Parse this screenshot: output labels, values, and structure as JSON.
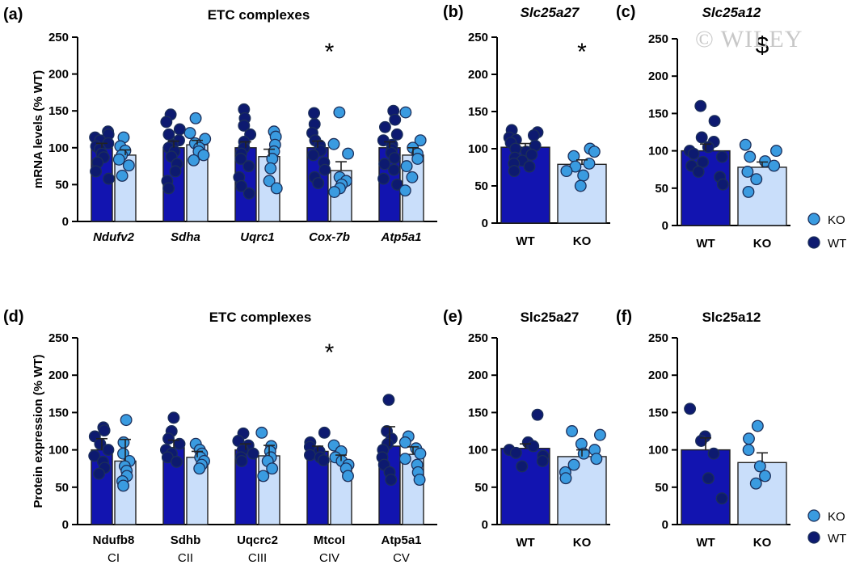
{
  "watermark": "© WILEY",
  "legend": {
    "items": [
      {
        "label": "KO",
        "color": "#3a9be0"
      },
      {
        "label": "WT",
        "color": "#0d1a70"
      }
    ]
  },
  "chart_data": [
    {
      "panel": "(a)",
      "type": "bar",
      "title": "ETC complexes",
      "ylabel": "mRNA levels (% WT)",
      "ylim": [
        0,
        250
      ],
      "yticks": [
        0,
        50,
        100,
        150,
        200,
        250
      ],
      "categories": [
        "Ndufv2",
        "Sdha",
        "Uqrc1",
        "Cox-7b",
        "Atp5a1"
      ],
      "category_style": "italic",
      "series": [
        {
          "name": "WT",
          "values": [
            100,
            100,
            100,
            100,
            100
          ],
          "sem": [
            6,
            9,
            8,
            9,
            8
          ],
          "points": [
            [
              122,
              118,
              114,
              110,
              106,
              102,
              98,
              92,
              87,
              80,
              68,
              58
            ],
            [
              145,
              135,
              125,
              118,
              110,
              104,
              100,
              95,
              88,
              78,
              68,
              55,
              45
            ],
            [
              152,
              140,
              130,
              118,
              108,
              100,
              92,
              85,
              75,
              60,
              48,
              38
            ],
            [
              147,
              132,
              120,
              110,
              103,
              96,
              90,
              80,
              70,
              60,
              52
            ],
            [
              150,
              138,
              128,
              118,
              110,
              104,
              98,
              93,
              86,
              78,
              70,
              58,
              50
            ]
          ]
        },
        {
          "name": "KO",
          "values": [
            90,
            104,
            88,
            69,
            90
          ],
          "sem": [
            7,
            6,
            10,
            12,
            10
          ],
          "points": [
            [
              114,
              102,
              96,
              90,
              84,
              76,
              62
            ],
            [
              140,
              120,
              112,
              106,
              100,
              95,
              90,
              83
            ],
            [
              122,
              115,
              104,
              95,
              85,
              72,
              55,
              45
            ],
            [
              148,
              105,
              92,
              60,
              55,
              50,
              45,
              40
            ],
            [
              148,
              110,
              100,
              92,
              85,
              75,
              60,
              42
            ]
          ]
        }
      ],
      "annotations": [
        {
          "text": "*",
          "category": "Cox-7b"
        }
      ]
    },
    {
      "panel": "(b)",
      "type": "bar",
      "title": "Slc25a27",
      "title_style": "italic",
      "ylim": [
        0,
        250
      ],
      "yticks": [
        0,
        50,
        100,
        150,
        200,
        250
      ],
      "categories": [
        "WT",
        "KO"
      ],
      "values": [
        102,
        79
      ],
      "sem": [
        5,
        6
      ],
      "points": [
        [
          125,
          122,
          118,
          115,
          112,
          108,
          104,
          100,
          96,
          92,
          88,
          84,
          80,
          76,
          70
        ],
        [
          100,
          96,
          90,
          80,
          76,
          70,
          64,
          50
        ]
      ],
      "annotations": [
        {
          "text": "*",
          "category": "KO"
        }
      ]
    },
    {
      "panel": "(c)",
      "type": "bar",
      "title": "Slc25a12",
      "title_style": "italic",
      "ylim": [
        0,
        250
      ],
      "yticks": [
        0,
        50,
        100,
        150,
        200,
        250
      ],
      "categories": [
        "WT",
        "KO"
      ],
      "values": [
        100,
        78
      ],
      "sem": [
        9,
        7
      ],
      "points": [
        [
          160,
          140,
          118,
          112,
          105,
          100,
          96,
          92,
          85,
          80,
          72,
          65,
          55
        ],
        [
          108,
          100,
          92,
          86,
          80,
          72,
          62,
          45
        ]
      ],
      "annotations": [
        {
          "text": "$",
          "category": "KO"
        }
      ]
    },
    {
      "panel": "(d)",
      "type": "bar",
      "title": "ETC complexes",
      "ylabel": "Protein expression (% WT)",
      "ylim": [
        0,
        250
      ],
      "yticks": [
        0,
        50,
        100,
        150,
        200,
        250
      ],
      "categories": [
        "Ndufb8",
        "Sdhb",
        "Uqcrc2",
        "MtcoI",
        "Atp5a1"
      ],
      "subcategories": [
        "CI",
        "CII",
        "CIII",
        "CIV",
        "CV"
      ],
      "series": [
        {
          "name": "WT",
          "values": [
            100,
            103,
            100,
            98,
            105
          ],
          "sem": [
            15,
            10,
            8,
            7,
            26
          ],
          "points": [
            [
              130,
              126,
              118,
              108,
              100,
              92,
              84,
              76,
              68
            ],
            [
              143,
              125,
              115,
              108,
              100,
              95,
              90,
              84
            ],
            [
              122,
              112,
              106,
              100,
              95,
              90,
              85
            ],
            [
              123,
              110,
              104,
              98,
              93,
              90,
              86
            ],
            [
              167,
              125,
              115,
              108,
              100,
              90,
              80,
              70,
              60
            ]
          ]
        },
        {
          "name": "KO",
          "values": [
            85,
            90,
            92,
            85,
            94
          ],
          "sem": [
            29,
            8,
            14,
            8,
            10
          ],
          "points": [
            [
              140,
              110,
              95,
              85,
              78,
              72,
              65,
              58,
              52
            ],
            [
              108,
              100,
              95,
              90,
              85,
              80,
              75
            ],
            [
              123,
              105,
              98,
              90,
              85,
              75,
              65
            ],
            [
              106,
              98,
              90,
              85,
              80,
              75,
              65
            ],
            [
              118,
              110,
              102,
              95,
              88,
              80,
              70,
              60
            ]
          ]
        }
      ],
      "annotations": [
        {
          "text": "*",
          "category": "MtcoI"
        }
      ]
    },
    {
      "panel": "(e)",
      "type": "bar",
      "title": "Slc25a27",
      "ylim": [
        0,
        250
      ],
      "yticks": [
        0,
        50,
        100,
        150,
        200,
        250
      ],
      "categories": [
        "WT",
        "KO"
      ],
      "values": [
        102,
        91
      ],
      "sem": [
        6,
        9
      ],
      "points": [
        [
          147,
          110,
          105,
          100,
          96,
          92,
          85,
          78
        ],
        [
          125,
          120,
          108,
          100,
          95,
          88,
          80,
          70,
          62
        ]
      ]
    },
    {
      "panel": "(f)",
      "type": "bar",
      "title": "Slc25a12",
      "ylim": [
        0,
        250
      ],
      "yticks": [
        0,
        50,
        100,
        150,
        200,
        250
      ],
      "categories": [
        "WT",
        "KO"
      ],
      "values": [
        100,
        83
      ],
      "sem": [
        16,
        13
      ],
      "points": [
        [
          155,
          118,
          112,
          95,
          62,
          35
        ],
        [
          132,
          115,
          100,
          78,
          65,
          55
        ]
      ]
    }
  ]
}
